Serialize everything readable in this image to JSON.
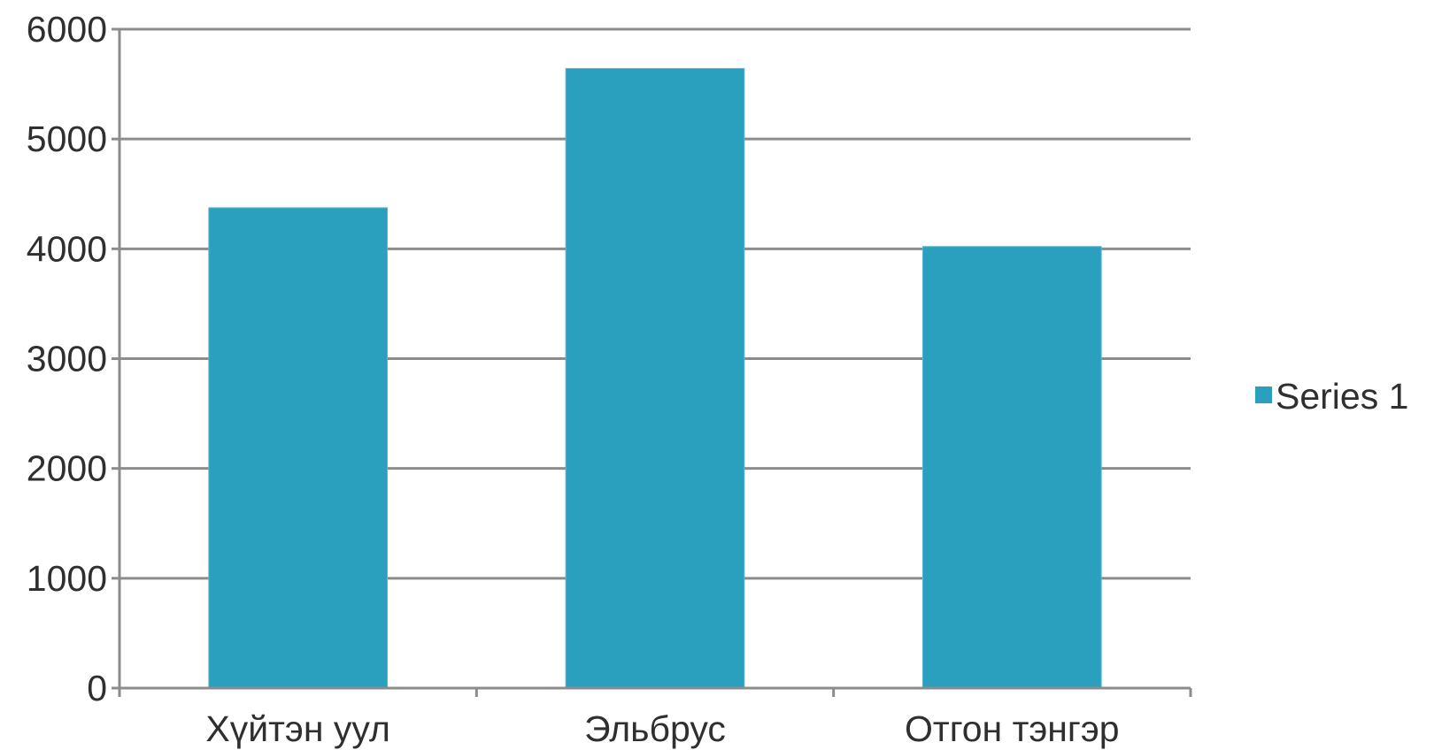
{
  "chart_data": {
    "type": "bar",
    "categories": [
      "Хүйтэн уул",
      "Эльбрус",
      "Отгон тэнгэр"
    ],
    "series": [
      {
        "name": "Series 1",
        "values": [
          4374,
          5642,
          4021
        ]
      }
    ],
    "ylim": [
      0,
      6000
    ],
    "yticks": [
      "0",
      "1000",
      "2000",
      "3000",
      "4000",
      "5000",
      "6000"
    ],
    "grid": true,
    "legend_position": "right",
    "title": "",
    "xlabel": "",
    "ylabel": ""
  },
  "colors": {
    "series": "#2aa0be",
    "gridline": "#8c8c8c",
    "axis": "#8c8c8c"
  }
}
